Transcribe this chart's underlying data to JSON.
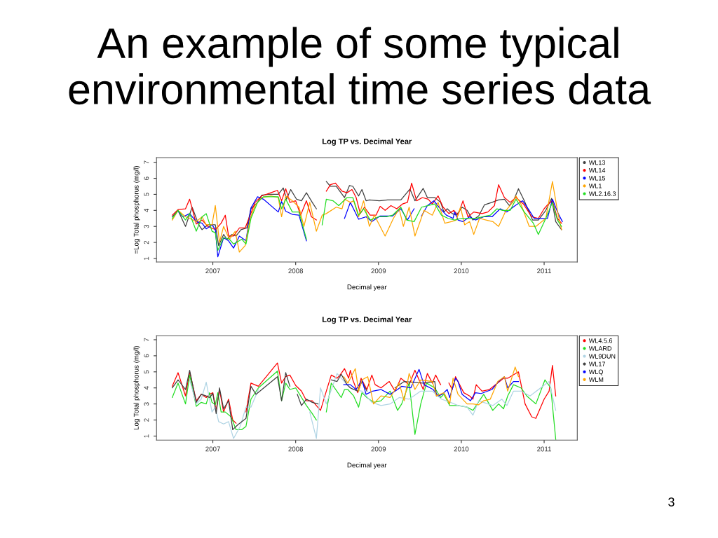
{
  "chart_data": [
    {
      "type": "other",
      "title": "An example of some typical environmental time series data",
      "annotations": [
        "3"
      ]
    },
    {
      "type": "line",
      "title": "Log TP vs. Decimal Year",
      "xlabel": "Decimal year",
      "ylabel": "=Log Total phosphorus (mg/l)",
      "xlim": [
        2006.32,
        2011.4
      ],
      "ylim": [
        0.78,
        7.29
      ],
      "xticks": [
        2007,
        2008,
        2009,
        2010,
        2011
      ],
      "yticks": [
        1,
        2,
        3,
        4,
        5,
        6,
        7
      ],
      "legend": "top right",
      "series": [
        {
          "name": "WL13",
          "color": "#404040",
          "x": [
            2006.51,
            2006.58,
            2006.67,
            2006.75,
            2006.83,
            2006.87,
            2006.94,
            2007.03,
            2007.07,
            2007.13,
            2007.17,
            2007.23,
            2007.28,
            2007.34,
            2007.41,
            2007.46,
            2007.54,
            2007.59,
            2007.68,
            2007.79,
            2007.85,
            2007.89,
            2007.94,
            2008.01,
            2008.07,
            2008.13,
            2008.2,
            2008.25,
            2008.31,
            2008.37,
            2008.42,
            2008.49,
            2008.59,
            2008.65,
            2008.69,
            2008.76,
            2008.8,
            2008.85,
            2008.89,
            2009.01,
            2009.11,
            2009.27,
            2009.38,
            2009.44,
            2009.54,
            2009.59,
            2009.68,
            2009.75,
            2009.79,
            2009.83,
            2009.89,
            2009.94,
            2010.01,
            2010.07,
            2010.14,
            2010.21,
            2010.28,
            2010.37,
            2010.45,
            2010.52,
            2010.58,
            2010.63,
            2010.69,
            2010.76,
            2010.86,
            2010.93,
            2011.02,
            2011.09,
            2011.14,
            2011.21
          ],
          "values": [
            3.6,
            4.0,
            3.0,
            4.2,
            3.1,
            2.8,
            3.1,
            3.1,
            1.8,
            2.5,
            2.2,
            2.5,
            2.4,
            2.8,
            2.9,
            4.1,
            4.5,
            4.95,
            5.0,
            5.0,
            5.4,
            4.7,
            5.3,
            4.7,
            4.6,
            5.1,
            4.5,
            4.1,
            null,
            5.8,
            5.5,
            5.5,
            4.8,
            5.55,
            5.5,
            4.9,
            5.3,
            4.6,
            4.65,
            4.6,
            4.65,
            4.65,
            5.33,
            4.6,
            5.37,
            4.8,
            4.8,
            4.5,
            3.9,
            4.1,
            3.8,
            3.7,
            4.2,
            4.0,
            3.4,
            3.65,
            4.35,
            4.5,
            4.65,
            4.7,
            4.3,
            4.6,
            5.35,
            4.6,
            3.4,
            3.4,
            4.0,
            4.75,
            3.3,
            2.8
          ]
        },
        {
          "name": "WL14",
          "color": "#ff0000",
          "x": [
            2006.51,
            2006.58,
            2006.67,
            2006.72,
            2006.8,
            2006.87,
            2006.94,
            2007.03,
            2007.1,
            2007.15,
            2007.19,
            2007.25,
            2007.32,
            2007.39,
            2007.45,
            2007.51,
            2007.59,
            2007.7,
            2007.78,
            2007.83,
            2007.88,
            2007.93,
            2008.0,
            2008.06,
            2008.13,
            2008.19,
            2008.25,
            2008.31,
            2008.37,
            2008.42,
            2008.48,
            2008.56,
            2008.62,
            2008.68,
            2008.73,
            2008.78,
            2008.83,
            2008.9,
            2008.97,
            2009.02,
            2009.08,
            2009.15,
            2009.22,
            2009.29,
            2009.35,
            2009.4,
            2009.46,
            2009.53,
            2009.6,
            2009.65,
            2009.72,
            2009.78,
            2009.85,
            2009.91,
            2009.96,
            2010.02,
            2010.08,
            2010.15,
            2010.25,
            2010.32,
            2010.4,
            2010.45,
            2010.52,
            2010.59,
            2010.66,
            2010.75,
            2010.85,
            2010.93,
            2011.0,
            2011.05,
            2011.1,
            2011.16,
            2011.21
          ],
          "values": [
            3.7,
            4.05,
            4.1,
            4.7,
            3.15,
            3.4,
            3.0,
            2.8,
            3.2,
            3.7,
            2.4,
            2.4,
            2.9,
            2.9,
            3.7,
            4.5,
            4.9,
            5.1,
            5.25,
            4.6,
            5.35,
            4.5,
            4.6,
            3.7,
            4.6,
            3.6,
            3.4,
            null,
            5.2,
            5.6,
            5.7,
            5.2,
            5.1,
            5.3,
            4.8,
            3.8,
            4.2,
            3.7,
            3.7,
            4.25,
            4.0,
            4.3,
            4.1,
            4.4,
            4.5,
            5.7,
            4.6,
            4.8,
            4.7,
            4.4,
            4.9,
            4.2,
            3.8,
            4.0,
            3.7,
            4.6,
            3.6,
            3.9,
            3.8,
            3.9,
            4.3,
            5.6,
            4.8,
            4.5,
            4.8,
            4.4,
            3.6,
            3.5,
            4.1,
            4.4,
            4.6,
            3.5,
            3.2
          ]
        },
        {
          "name": "WL15",
          "color": "#0000ff",
          "x": [
            2006.58,
            2006.64,
            2006.72,
            2006.8,
            2006.87,
            2006.92,
            2006.99,
            2007.03,
            2007.06,
            2007.13,
            2007.19,
            2007.25,
            2007.32,
            2007.4,
            2007.46,
            2007.54,
            2007.61,
            2007.79,
            2007.83,
            2007.88,
            2007.96,
            2008.04,
            2008.13,
            2008.4,
            2008.59,
            2008.66,
            2008.76,
            2008.85,
            2008.92,
            2009.02,
            2009.17,
            2009.27,
            2009.35,
            2009.43,
            2009.44,
            2009.52,
            2009.59,
            2009.67,
            2009.73,
            2009.82,
            2009.9,
            2009.92,
            2009.96,
            2010.02,
            2010.1,
            2010.17,
            2010.27,
            2010.37,
            2010.47,
            2010.55,
            2010.65,
            2010.74,
            2010.82,
            2010.88,
            2010.96,
            2011.04,
            2011.1,
            2011.17,
            2011.22
          ],
          "values": [
            3.95,
            3.6,
            3.8,
            3.3,
            3.2,
            2.85,
            3.1,
            2.8,
            1.1,
            2.3,
            2.1,
            1.65,
            2.4,
            2.1,
            4.15,
            4.85,
            4.7,
            3.9,
            4.55,
            3.95,
            3.75,
            3.7,
            2.1,
            null,
            3.5,
            4.5,
            3.45,
            3.6,
            3.3,
            3.65,
            3.65,
            4.1,
            3.4,
            4.1,
            null,
            3.65,
            4.3,
            4.6,
            4.2,
            3.7,
            3.5,
            3.9,
            3.4,
            3.3,
            3.6,
            3.4,
            3.6,
            3.6,
            4.1,
            3.9,
            4.3,
            4.6,
            4.0,
            3.5,
            3.5,
            3.5,
            4.7,
            3.8,
            3.3
          ]
        },
        {
          "name": "WL1",
          "color": "#ffa500",
          "x": [
            2006.51,
            2006.58,
            2006.67,
            2006.72,
            2006.8,
            2006.87,
            2006.92,
            2006.99,
            2007.03,
            2007.08,
            2007.13,
            2007.2,
            2007.27,
            2007.32,
            2007.39,
            2007.45,
            2007.51,
            2007.59,
            2007.7,
            2007.79,
            2007.83,
            2007.88,
            2007.96,
            2008.04,
            2008.1,
            2008.17,
            2008.25,
            2008.32,
            2008.37,
            2008.49,
            2008.56,
            2008.59,
            2008.66,
            2008.7,
            2008.76,
            2008.82,
            2008.89,
            2008.95,
            2009.08,
            2009.18,
            2009.25,
            2009.3,
            2009.37,
            2009.44,
            2009.55,
            2009.65,
            2009.72,
            2009.8,
            2009.88,
            2009.94,
            2009.99,
            2010.04,
            2010.1,
            2010.15,
            2010.22,
            2010.3,
            2010.38,
            2010.45,
            2010.54,
            2010.62,
            2010.66,
            2010.72,
            2010.82,
            2010.9,
            2011.02,
            2011.1,
            2011.16,
            2011.21
          ],
          "values": [
            3.4,
            4.0,
            3.6,
            3.5,
            3.3,
            3.6,
            3.1,
            3.1,
            4.3,
            2.0,
            3.0,
            2.2,
            2.7,
            1.4,
            1.8,
            3.5,
            4.3,
            4.8,
            4.9,
            4.8,
            3.6,
            4.9,
            4.6,
            4.2,
            3.0,
            4.5,
            2.7,
            3.7,
            3.8,
            4.2,
            4.1,
            4.7,
            4.5,
            4.6,
            3.6,
            4.6,
            3.0,
            3.7,
            2.4,
            3.5,
            4.1,
            3.0,
            4.2,
            2.4,
            4.0,
            3.7,
            4.5,
            3.2,
            3.3,
            3.4,
            4.2,
            3.1,
            3.3,
            2.5,
            3.5,
            3.4,
            3.3,
            3.0,
            4.0,
            4.5,
            4.9,
            4.4,
            3.0,
            3.0,
            3.5,
            5.8,
            4.0,
            2.8
          ]
        },
        {
          "name": "WL2.16.3",
          "color": "#22dd22",
          "x": [
            2006.51,
            2006.58,
            2006.67,
            2006.72,
            2006.8,
            2006.87,
            2006.92,
            2006.99,
            2007.03,
            2007.06,
            2007.13,
            2007.2,
            2007.25,
            2007.35,
            2007.4,
            2007.46,
            2007.54,
            2007.61,
            2007.79,
            2007.83,
            2007.88,
            2007.96,
            2008.04,
            2008.13,
            2008.22,
            2008.32,
            2008.37,
            2008.45,
            2008.52,
            2008.62,
            2008.69,
            2008.76,
            2008.82,
            2008.9,
            2009.0,
            2009.1,
            2009.17,
            2009.27,
            2009.34,
            2009.43,
            2009.52,
            2009.6,
            2009.68,
            2009.76,
            2009.84,
            2009.92,
            2010.0,
            2010.1,
            2010.17,
            2010.26,
            2010.35,
            2010.43,
            2010.5,
            2010.59,
            2010.66,
            2010.76,
            2010.87,
            2010.93,
            2011.02,
            2011.1,
            2011.16,
            2011.21
          ],
          "values": [
            3.5,
            4.0,
            3.4,
            3.8,
            2.7,
            3.6,
            3.8,
            2.7,
            2.6,
            1.5,
            2.3,
            2.2,
            1.9,
            2.2,
            1.9,
            3.5,
            4.5,
            4.85,
            4.85,
            4.1,
            4.7,
            3.9,
            3.9,
            2.2,
            null,
            3.1,
            4.7,
            4.6,
            4.3,
            4.8,
            4.8,
            3.7,
            4.1,
            3.4,
            3.6,
            3.6,
            3.7,
            4.2,
            3.4,
            3.3,
            4.2,
            4.3,
            4.4,
            3.7,
            3.5,
            3.4,
            3.5,
            3.5,
            3.5,
            3.6,
            3.7,
            4.1,
            4.0,
            4.0,
            4.7,
            3.9,
            3.2,
            2.5,
            3.5,
            4.5,
            3.4,
            3.0
          ]
        }
      ]
    },
    {
      "type": "line",
      "title": "Log TP vs. Decimal Year",
      "xlabel": "Decimal year",
      "ylabel": "Log Total phosphorus (mg/l)",
      "xlim": [
        2006.32,
        2011.4
      ],
      "ylim": [
        0.75,
        7.25
      ],
      "xticks": [
        2007,
        2008,
        2009,
        2010,
        2011
      ],
      "yticks": [
        1,
        2,
        3,
        4,
        5,
        6,
        7
      ],
      "legend": "top right",
      "series": [
        {
          "name": "WL4.5.6",
          "color": "#ff0000",
          "x": [
            2006.51,
            2006.58,
            2006.67,
            2006.72,
            2006.8,
            2006.86,
            2006.92,
            2006.96,
            2007.0,
            2007.04,
            2007.08,
            2007.13,
            2007.19,
            2007.24,
            2007.28,
            2007.34,
            2007.4,
            2007.46,
            2007.55,
            2007.78,
            2007.83,
            2007.88,
            2007.93,
            2008.0,
            2008.07,
            2008.13,
            2008.2,
            2008.3,
            2008.37,
            2008.43,
            2008.5,
            2008.55,
            2008.59,
            2008.64,
            2008.66,
            2008.69,
            2008.75,
            2008.79,
            2008.86,
            2008.92,
            2008.96,
            2009.03,
            2009.13,
            2009.2,
            2009.27,
            2009.37,
            2009.44,
            2009.54,
            2009.59,
            2009.65,
            2009.69,
            2009.75,
            2009.82,
            2009.85,
            2009.89,
            2009.93,
            2010.03,
            2010.1,
            2010.14,
            2010.18,
            2010.25,
            2010.34,
            2010.51,
            2010.56,
            2010.69,
            2010.77,
            2010.85,
            2010.9,
            2011.0,
            2011.06,
            2011.1,
            2011.14
          ],
          "values": [
            4.1,
            4.95,
            3.5,
            5.0,
            3.2,
            3.6,
            3.4,
            3.6,
            3.7,
            2.6,
            3.9,
            2.5,
            3.3,
            2.0,
            1.8,
            null,
            2.5,
            4.3,
            4.1,
            5.55,
            4.3,
            4.7,
            4.8,
            4.15,
            3.8,
            3.2,
            3.2,
            2.6,
            3.8,
            4.8,
            4.6,
            4.9,
            5.2,
            4.6,
            5.1,
            4.5,
            3.7,
            4.6,
            3.9,
            4.8,
            4.2,
            4.0,
            4.4,
            3.8,
            4.6,
            4.2,
            5.1,
            3.9,
            4.9,
            4.3,
            4.8,
            4.2,
            null,
            4.3,
            3.9,
            4.7,
            3.7,
            3.5,
            3.3,
            4.2,
            3.8,
            3.9,
            4.6,
            4.6,
            5.0,
            3.0,
            2.2,
            2.1,
            3.3,
            3.8,
            5.4,
            3.5
          ]
        },
        {
          "name": "WLARD",
          "color": "#22dd22",
          "x": [
            2006.51,
            2006.58,
            2006.67,
            2006.72,
            2006.8,
            2006.86,
            2006.92,
            2006.96,
            2006.99,
            2007.03,
            2007.06,
            2007.1,
            2007.15,
            2007.22,
            2007.28,
            2007.35,
            2007.4,
            2007.46,
            2007.55,
            2007.78,
            2007.83,
            2007.88,
            2007.93,
            2008.0,
            2008.13,
            2008.2,
            2008.25,
            2008.31,
            2008.37,
            2008.43,
            2008.55,
            2008.59,
            2008.63,
            2008.7,
            2008.76,
            2008.8,
            2008.86,
            2008.94,
            2009.03,
            2009.14,
            2009.23,
            2009.28,
            2009.37,
            2009.44,
            2009.51,
            2009.58,
            2009.68,
            2009.75,
            2009.79,
            2009.86,
            2009.96,
            2010.07,
            2010.14,
            2010.27,
            2010.38,
            2010.45,
            2010.51,
            2010.56,
            2010.63,
            2010.72,
            2010.79,
            2010.9,
            2011.01,
            2011.08,
            2011.14
          ],
          "values": [
            3.4,
            4.3,
            3.0,
            4.8,
            2.85,
            3.1,
            3.0,
            3.7,
            3.1,
            2.95,
            3.7,
            2.5,
            2.5,
            2.2,
            1.4,
            1.4,
            1.6,
            3.3,
            4.0,
            5.05,
            3.2,
            4.3,
            3.9,
            4.0,
            2.9,
            2.4,
            2.0,
            null,
            2.5,
            4.3,
            3.4,
            3.9,
            3.9,
            3.5,
            2.8,
            3.7,
            3.4,
            3.1,
            3.2,
            3.8,
            2.6,
            3.0,
            4.3,
            1.1,
            3.0,
            4.3,
            4.0,
            3.4,
            3.6,
            2.9,
            2.9,
            2.8,
            2.6,
            3.6,
            2.6,
            3.0,
            2.7,
            3.5,
            4.2,
            4.0,
            3.5,
            3.0,
            4.5,
            4.0,
            0.8
          ]
        },
        {
          "name": "WL9DUN",
          "color": "#b0d4e4",
          "x": [
            2006.72,
            2006.8,
            2006.86,
            2006.92,
            2006.99,
            2007.03,
            2007.07,
            2007.13,
            2007.19,
            2007.25,
            2007.33,
            2007.4,
            2007.46,
            2007.55,
            2007.8,
            2008.17,
            2008.25,
            2008.3,
            2008.37,
            2008.5,
            2008.62,
            2008.69,
            2008.8,
            2008.92,
            2009.03,
            2009.14,
            2009.25,
            2009.37,
            2009.51,
            2009.65,
            2009.76,
            2009.87,
            2009.96,
            2010.07,
            2010.14,
            2010.21,
            2010.38,
            2010.49,
            2010.55,
            2010.63,
            2010.72,
            2010.83,
            2011.06,
            2011.14
          ],
          "values": [
            4.5,
            3.0,
            3.3,
            4.35,
            2.5,
            2.8,
            1.9,
            1.75,
            1.9,
            0.85,
            1.6,
            2.8,
            2.8,
            3.9,
            null,
            2.5,
            0.85,
            4.0,
            3.0,
            4.9,
            4.2,
            3.9,
            3.8,
            3.1,
            2.9,
            3.0,
            3.4,
            3.3,
            3.8,
            3.8,
            3.3,
            3.1,
            2.9,
            2.8,
            2.3,
            3.2,
            2.9,
            3.3,
            2.9,
            3.8,
            3.8,
            3.5,
            4.4,
            2.6
          ]
        },
        {
          "name": "WL17",
          "color": "#404040",
          "x": [
            2006.51,
            2006.58,
            2006.67,
            2006.72,
            2006.8,
            2006.86,
            2006.92,
            2006.96,
            2007.0,
            2007.04,
            2007.08,
            2007.13,
            2007.19,
            2007.24,
            2007.3,
            2007.4,
            2007.46,
            2007.52,
            2007.78,
            2007.83,
            2007.88,
            2007.93,
            2007.97,
            2008.02,
            2008.07,
            2008.13,
            2008.2,
            2008.27,
            2008.35,
            2008.43,
            2008.5,
            2008.55,
            2008.62,
            2008.66,
            2008.75,
            2008.8,
            2008.86,
            2008.95,
            2009.2,
            2009.31,
            2009.54,
            2009.68,
            2009.7
          ],
          "values": [
            4.0,
            4.5,
            3.9,
            5.1,
            3.1,
            3.6,
            3.5,
            3.4,
            3.65,
            2.4,
            4.0,
            2.7,
            3.2,
            1.4,
            1.7,
            2.1,
            4.1,
            3.6,
            4.7,
            3.2,
            4.95,
            4.1,
            null,
            3.6,
            2.9,
            3.3,
            3.1,
            3.0,
            null,
            4.5,
            4.4,
            4.85,
            4.2,
            4.0,
            3.8,
            4.4,
            3.8,
            null,
            4.0,
            4.4,
            4.3,
            4.4,
            3.5
          ]
        },
        {
          "name": "WLQ",
          "color": "#0000ff",
          "x": [
            2008.58,
            2008.66,
            2008.73,
            2008.8,
            2008.85,
            2008.93,
            2009.03,
            2009.14,
            2009.23,
            2009.28,
            2009.39,
            2009.49,
            2009.55,
            2009.66,
            2009.72,
            2009.77,
            2009.83,
            2009.86,
            2009.93,
            2009.96,
            2010.01,
            2010.11,
            2010.17,
            2010.24,
            2010.37,
            2010.45,
            2010.52,
            2010.56,
            2010.63,
            2010.69
          ],
          "values": [
            4.2,
            4.2,
            3.9,
            4.5,
            3.6,
            3.8,
            3.9,
            3.6,
            3.9,
            4.1,
            4.0,
            5.15,
            4.2,
            3.9,
            3.5,
            3.6,
            3.9,
            3.4,
            4.6,
            4.4,
            3.6,
            3.2,
            3.7,
            3.65,
            3.9,
            4.4,
            4.7,
            4.0,
            4.4,
            4.4
          ]
        },
        {
          "name": "WLM",
          "color": "#ffa500",
          "x": [
            2008.58,
            2008.63,
            2008.72,
            2008.76,
            2008.8,
            2008.87,
            2008.94,
            2009.03,
            2009.14,
            2009.25,
            2009.31,
            2009.37,
            2009.44,
            2009.51,
            2009.65,
            2009.7,
            2009.79,
            2009.86,
            2009.9,
            2009.96,
            2010.07,
            2010.14,
            2010.21,
            2010.27,
            2010.35,
            2010.44,
            2010.52,
            2010.56,
            2010.65,
            2010.69
          ],
          "values": [
            4.7,
            4.3,
            5.2,
            3.8,
            4.5,
            4.7,
            3.0,
            3.5,
            3.4,
            4.3,
            3.2,
            4.9,
            3.9,
            4.5,
            4.4,
            3.5,
            3.7,
            3.0,
            4.6,
            3.6,
            3.0,
            3.0,
            2.95,
            3.2,
            3.3,
            4.4,
            4.7,
            3.8,
            5.3,
            4.7
          ]
        }
      ]
    }
  ]
}
